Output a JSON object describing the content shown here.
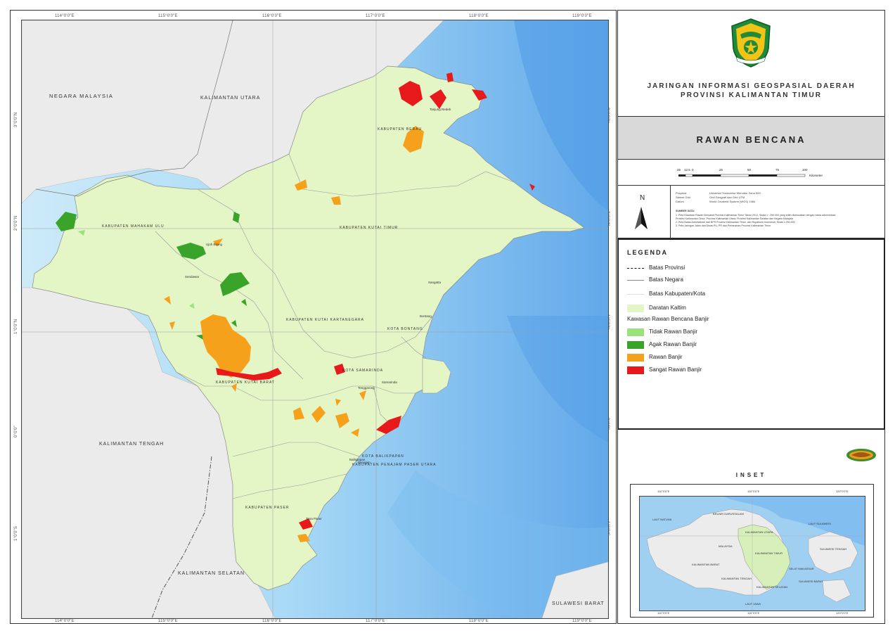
{
  "map": {
    "top_ticks": [
      "114°0'0\"E",
      "115°0'0\"E",
      "116°0'0\"E",
      "117°0'0\"E",
      "118°0'0\"E",
      "119°0'0\"E"
    ],
    "bottom_ticks": [
      "114°0'0\"E",
      "115°0'0\"E",
      "116°0'0\"E",
      "117°0'0\"E",
      "118°0'0\"E",
      "119°0'0\"E"
    ],
    "left_ticks": [
      "3°0'0\"N",
      "2°0'0\"N",
      "1°0'0\"N",
      "0°0'0\"",
      "1°0'0\"S",
      "2°0'0\"S"
    ],
    "right_ticks": [
      "3°0'0\"N",
      "2°0'0\"N",
      "1°0'0\"N",
      "0°0'0\"",
      "1°0'0\"S",
      "2°0'0\"S"
    ],
    "regions": {
      "negara_malaysia": "NEGARA MALAYSIA",
      "kalimantan_utara": "KALIMANTAN UTARA",
      "kalimantan_tengah": "KALIMANTAN TENGAH",
      "kalimantan_selatan": "KALIMANTAN SELATAN",
      "sulawesi_barat": "SULAWESI BARAT"
    },
    "districts": {
      "berau": "KABUPATEN BERAU",
      "mahakam_ulu": "KABUPATEN MAHAKAM ULU",
      "kutai_timur": "KABUPATEN KUTAI TIMUR",
      "kutai_kartanegara": "KABUPATEN KUTAI KARTANEGARA",
      "bontang": "KOTA BONTANG",
      "samarinda": "KOTA SAMARINDA",
      "kutai_barat": "KABUPATEN KUTAI BARAT",
      "balikpapan": "KOTA BALIKPAPAN",
      "penajam": "KABUPATEN PENAJAM PASER UTARA",
      "paser": "KABUPATEN PASER"
    },
    "towns": [
      "Tanjung Redeb",
      "Sangatta",
      "Bontang",
      "Tenggarong",
      "Samarinda",
      "Balikpapan",
      "Tana Paser",
      "Sendawar",
      "Ujoh Bilang",
      "Penajam"
    ]
  },
  "header": {
    "line1": "JARINGAN INFORMASI GEOSPASIAL DAERAH",
    "line2": "PROVINSI KALIMANTAN TIMUR",
    "theme": "RAWAN BENCANA"
  },
  "scale": {
    "labels": [
      "25",
      "12.5",
      "0",
      "25",
      "50",
      "75",
      "100"
    ],
    "unit": "Kilometer"
  },
  "north_label": "N",
  "meta": [
    {
      "key": "Proyeksi",
      "value": "Universal Transverse Mercator Zona 50S"
    },
    {
      "key": "Sistem Grid",
      "value": "Grid Geografi dan Grid UTM"
    },
    {
      "key": "Datum",
      "value": "World Geodetic System (WGS) 1984"
    }
  ],
  "sources": {
    "title": "SUMBER DATA:",
    "items": [
      "1. Peta Kawasan Rawan Bencana Provinsi Kalimantan Timur Tahun 2012, Skala 1 : 250.000 yang telah disesuaikan dengan batas administrasi",
      "   Provinsi Kalimantan Timur, Provinsi Kalimantan Utara, Provinsi Kalimantan Selatan dan Negara Malaysia",
      "2. Peta Batas Administrasi dari BPS Provinsi Kalimantan Timur, dan Rupabumi Indonesia, Skala 1:250.000",
      "3. Peta Jaringan Jalan dari Dinas PU, PR dan Pertanahan Provinsi Kalimantan Timur"
    ]
  },
  "legend": {
    "title": "LEGENDA",
    "batas_provinsi": "Batas Provinsi",
    "batas_negara": "Batas Negara",
    "batas_kabupaten": "Batas Kabupaten/Kota",
    "daratan": "Daratan Kaltim",
    "kawasan": "Kawasan Rawan Bencana Banjir",
    "tidak_rawan": "Tidak Rawan Banjir",
    "agak_rawan": "Agak Rawan Banjir",
    "rawan": "Rawan Banjir",
    "sangat_rawan": "Sangat Rawan Banjir"
  },
  "colors": {
    "daratan": "#e4f5c6",
    "tidak_rawan": "#9be27b",
    "agak_rawan": "#3aa32a",
    "rawan": "#f5a11b",
    "sangat_rawan": "#e8191b",
    "sea": "#a7d8f5",
    "neighbor_land": "#ececec"
  },
  "inset": {
    "title": "INSET",
    "top_ticks": [
      "110°0'0\"E",
      "115°0'0\"E",
      "120°0'0\"E"
    ],
    "bottom_ticks": [
      "110°0'0\"E",
      "115°0'0\"E",
      "120°0'0\"E"
    ],
    "labels": {
      "brunei": "BRUNEI DARUSSALAM",
      "malaysia": "MALAYSIA",
      "kaltara": "KALIMANTAN UTARA",
      "kaltim": "KALIMANTAN TIMUR",
      "kalbar": "KALIMANTAN BARAT",
      "kalteng": "KALIMANTAN TENGAH",
      "kalsel": "KALIMANTAN SELATAN",
      "sulbar": "SULAWESI BARAT",
      "sulteng": "SULAWESI TENGAH",
      "laut_jawa": "LAUT JAWA",
      "laut_sulawesi": "LAUT SULAWESI",
      "selat_makassar": "SELAT MAKASSAR",
      "laut_natuna": "LAUT NATUNA"
    }
  }
}
